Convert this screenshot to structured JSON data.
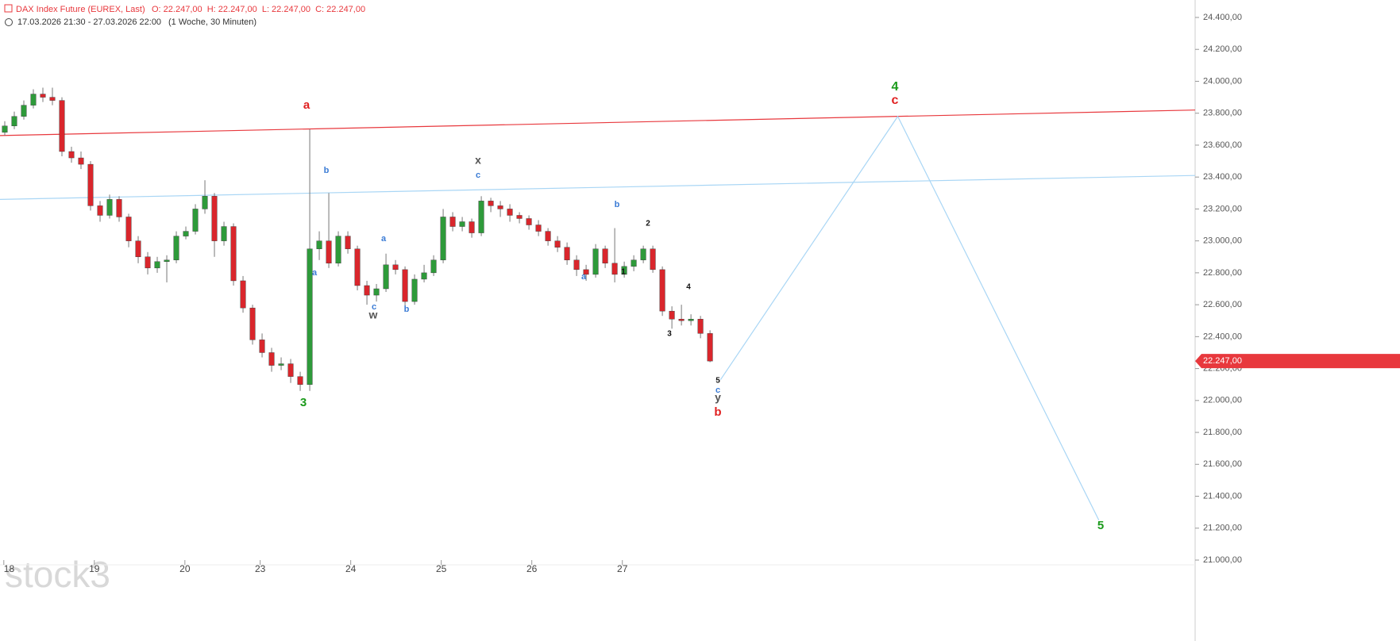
{
  "header": {
    "title": "DAX Index Future (EUREX, Last)",
    "ohlc": "O: 22.247,00  H: 22.247,00  L: 22.247,00  C: 22.247,00",
    "range": "17.03.2026 21:30 - 27.03.2026 22:00",
    "interval": "(1 Woche, 30 Minuten)"
  },
  "watermark": "stock3",
  "chart_data": {
    "type": "candlestick",
    "up_color": "#2e9a3a",
    "down_color": "#d9262c",
    "open": [
      23680,
      23720,
      23780,
      23850,
      23920,
      23900,
      23880,
      23560,
      23520,
      23480,
      23220,
      23160,
      23260,
      23150,
      23000,
      22900,
      22830,
      22870,
      22880,
      23030,
      23060,
      23200,
      23280,
      23000,
      23090,
      22750,
      22580,
      22380,
      22300,
      22220,
      22230,
      22150,
      22100,
      22950,
      23000,
      22860,
      23030,
      22950,
      22720,
      22660,
      22700,
      22850,
      22820,
      22620,
      22760,
      22800,
      22880,
      23150,
      23090,
      23120,
      23050,
      23250,
      23220,
      23200,
      23160,
      23140,
      23100,
      23060,
      23000,
      22960,
      22880,
      22820,
      22790,
      22950,
      22860,
      22790,
      22840,
      22880,
      22950,
      22820,
      22560,
      22510,
      22500,
      22510,
      22420
    ],
    "high": [
      23750,
      23810,
      23880,
      23950,
      23960,
      23960,
      23900,
      23590,
      23560,
      23500,
      23250,
      23290,
      23280,
      23170,
      23030,
      22930,
      22900,
      22910,
      23060,
      23090,
      23230,
      23380,
      23300,
      23120,
      23110,
      22780,
      22600,
      22420,
      22330,
      22270,
      22260,
      22180,
      23700,
      23060,
      23300,
      23060,
      23060,
      22970,
      22750,
      22730,
      22920,
      22880,
      22840,
      22790,
      22850,
      22910,
      23200,
      23180,
      23150,
      23140,
      23280,
      23270,
      23250,
      23230,
      23180,
      23160,
      23130,
      23080,
      23030,
      22990,
      22910,
      22850,
      22980,
      22970,
      23080,
      22870,
      22910,
      22970,
      22970,
      22840,
      22590,
      22600,
      22540,
      22530,
      22440
    ],
    "low": [
      23660,
      23700,
      23760,
      23830,
      23870,
      23850,
      23530,
      23490,
      23450,
      23190,
      23120,
      23140,
      23120,
      22960,
      22860,
      22790,
      22800,
      22740,
      22860,
      23010,
      23040,
      23170,
      22900,
      22970,
      22720,
      22550,
      22350,
      22270,
      22180,
      22190,
      22110,
      22060,
      22060,
      22880,
      22830,
      22840,
      22920,
      22690,
      22600,
      22620,
      22680,
      22790,
      22580,
      22600,
      22740,
      22780,
      22860,
      23060,
      23060,
      23020,
      23030,
      23180,
      23150,
      23120,
      23110,
      23070,
      23030,
      22970,
      22930,
      22850,
      22780,
      22750,
      22770,
      22830,
      22740,
      22770,
      22810,
      22860,
      22800,
      22530,
      22450,
      22470,
      22470,
      22390,
      22240
    ],
    "close": [
      23720,
      23780,
      23850,
      23920,
      23900,
      23880,
      23560,
      23520,
      23480,
      23220,
      23160,
      23260,
      23150,
      23000,
      22900,
      22830,
      22870,
      22880,
      23030,
      23060,
      23200,
      23280,
      23000,
      23090,
      22750,
      22580,
      22380,
      22300,
      22220,
      22230,
      22150,
      22100,
      22950,
      23000,
      22860,
      23030,
      22950,
      22720,
      22660,
      22700,
      22850,
      22820,
      22620,
      22760,
      22800,
      22880,
      23150,
      23090,
      23120,
      23050,
      23250,
      23220,
      23200,
      23160,
      23140,
      23100,
      23060,
      23000,
      22960,
      22880,
      22820,
      22790,
      22950,
      22860,
      22790,
      22840,
      22880,
      22950,
      22820,
      22560,
      22510,
      22500,
      22510,
      22420,
      22247
    ],
    "xlim": [
      0,
      125.4
    ],
    "xticks": [
      {
        "value": 0.4,
        "label": "18"
      },
      {
        "value": 9.9,
        "label": "19"
      },
      {
        "value": 19.4,
        "label": "20"
      },
      {
        "value": 27.3,
        "label": "23"
      },
      {
        "value": 36.8,
        "label": "24"
      },
      {
        "value": 46.3,
        "label": "25"
      },
      {
        "value": 55.8,
        "label": "26"
      },
      {
        "value": 65.3,
        "label": "27"
      }
    ],
    "ylim": [
      21000,
      24400
    ],
    "yticks": [
      {
        "value": 24400,
        "label": "24.400,00"
      },
      {
        "value": 24200,
        "label": "24.200,00"
      },
      {
        "value": 24000,
        "label": "24.000,00"
      },
      {
        "value": 23800,
        "label": "23.800,00"
      },
      {
        "value": 23600,
        "label": "23.600,00"
      },
      {
        "value": 23400,
        "label": "23.400,00"
      },
      {
        "value": 23200,
        "label": "23.200,00"
      },
      {
        "value": 23000,
        "label": "23.000,00"
      },
      {
        "value": 22800,
        "label": "22.800,00"
      },
      {
        "value": 22600,
        "label": "22.600,00"
      },
      {
        "value": 22400,
        "label": "22.400,00"
      },
      {
        "value": 22200,
        "label": "22.200,00"
      },
      {
        "value": 22000,
        "label": "22.000,00"
      },
      {
        "value": 21800,
        "label": "21.800,00"
      },
      {
        "value": 21600,
        "label": "21.600,00"
      },
      {
        "value": 21400,
        "label": "21.400,00"
      },
      {
        "value": 21200,
        "label": "21.200,00"
      },
      {
        "value": 21000,
        "label": "21.000,00"
      }
    ],
    "last_price": {
      "value": 22247,
      "label": "22.247,00",
      "color": "#e8383d"
    },
    "lines": [
      {
        "color": "#e8383d",
        "x": [
          0,
          125.4
        ],
        "values": [
          23660,
          23820
        ]
      },
      {
        "color": "#a9d6f5",
        "x": [
          0,
          125.4
        ],
        "values": [
          23260,
          23410
        ]
      },
      {
        "color": "#a9d6f5",
        "x": [
          75.6,
          94.2,
          115.3
        ],
        "values": [
          22130,
          23780,
          21250
        ]
      }
    ],
    "annotations": [
      {
        "text": "a",
        "color": "#e02020"
      },
      {
        "text": "3",
        "color": "#1a9a1a"
      },
      {
        "text": "b",
        "color": "#3a7bd5"
      },
      {
        "text": "a",
        "color": "#3a7bd5"
      },
      {
        "text": "a",
        "color": "#3a7bd5"
      },
      {
        "text": "c",
        "color": "#3a7bd5"
      },
      {
        "text": "w",
        "color": "#555555"
      },
      {
        "text": "b",
        "color": "#3a7bd5"
      },
      {
        "text": "x",
        "color": "#555555"
      },
      {
        "text": "c",
        "color": "#3a7bd5"
      },
      {
        "text": "b",
        "color": "#3a7bd5"
      },
      {
        "text": "a",
        "color": "#3a7bd5"
      },
      {
        "text": "2",
        "color": "#111111"
      },
      {
        "text": "1",
        "color": "#111111"
      },
      {
        "text": "4",
        "color": "#111111"
      },
      {
        "text": "3",
        "color": "#111111"
      },
      {
        "text": "5",
        "color": "#111111"
      },
      {
        "text": "c",
        "color": "#3a7bd5"
      },
      {
        "text": "y",
        "color": "#555555"
      },
      {
        "text": "b",
        "color": "#e02020"
      },
      {
        "text": "4",
        "color": "#1a9a1a"
      },
      {
        "text": "c",
        "color": "#e02020"
      },
      {
        "text": "5",
        "color": "#1a9a1a"
      }
    ]
  }
}
